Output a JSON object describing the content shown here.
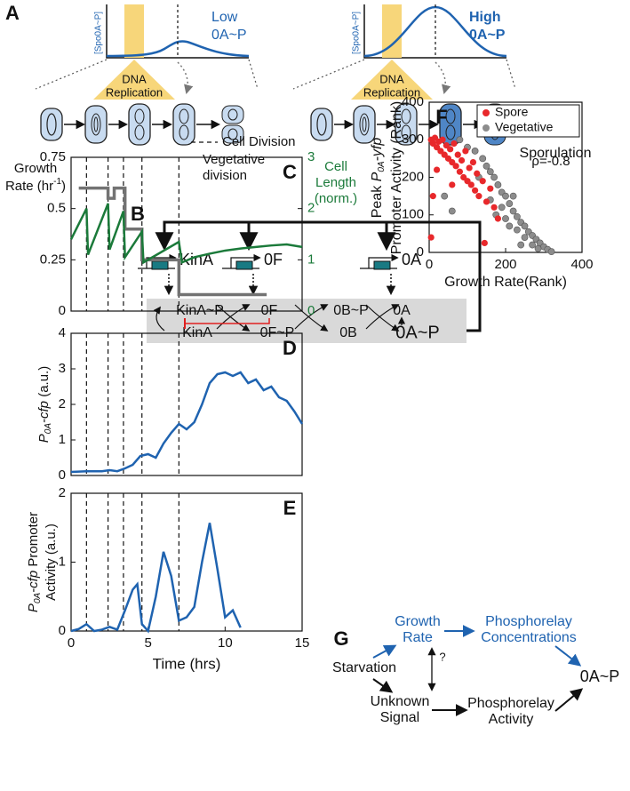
{
  "panels": {
    "A": {
      "label": "A",
      "y_axis": "[Spo0A~P]",
      "low": [
        "Low",
        "0A~P"
      ],
      "high": [
        "High",
        "0A~P"
      ],
      "replication": [
        "DNA",
        "Replication"
      ],
      "vegetative": [
        "Vegetative",
        "division"
      ],
      "sporulation": "Sporulation"
    },
    "B": {
      "label": "B",
      "genes": [
        "KinA",
        "0F",
        "0A"
      ],
      "nodes": [
        "KinA~P",
        "0F",
        "0B~P",
        "0A",
        "KinA",
        "0F~P",
        "0B",
        "0A~P"
      ]
    },
    "G": {
      "label": "G",
      "growth_rate": [
        "Growth",
        "Rate"
      ],
      "concentrations": [
        "Phosphorelay",
        "Concentrations"
      ],
      "starvation": "Starvation",
      "question": "?",
      "unknown": [
        "Unknown",
        "Signal"
      ],
      "activity": [
        "Phosphorelay",
        "Activity"
      ],
      "output": "0A~P"
    }
  },
  "chart_data": [
    {
      "type": "line",
      "panel": "C",
      "xlim": [
        0,
        15
      ],
      "ylim": [
        0,
        0.75
      ],
      "yticks": [
        0,
        0.25,
        0.5,
        0.75
      ],
      "y2lim": [
        0,
        3
      ],
      "y2ticks": [
        0,
        1,
        2,
        3
      ],
      "y2color": "#1b7a3a",
      "y_label": [
        [
          "Growth"
        ],
        [
          "Rate (hr",
          {
            "text": "-1",
            "style": "sup"
          },
          ")"
        ]
      ],
      "y2_label": [
        [
          "Cell"
        ],
        [
          "Length"
        ],
        [
          "(norm.)"
        ]
      ],
      "divisions": {
        "label": "Cell Division",
        "x": [
          1,
          2.4,
          3.4,
          4.6,
          7
        ]
      },
      "series": [
        {
          "color": "#737373",
          "x": [
            0.5,
            2.4,
            2.4,
            2.8,
            2.8,
            3.5,
            3.5,
            4.6,
            4.6,
            7,
            7,
            12.7
          ],
          "values": [
            0.6,
            0.6,
            0.55,
            0.55,
            0.6,
            0.6,
            0.4,
            0.4,
            0.25,
            0.25,
            0.08,
            0.08
          ]
        },
        {
          "color": "#1b7a3a",
          "axis": "y2",
          "x": [
            0,
            1,
            1.1,
            2.4,
            2.5,
            3.4,
            3.5,
            4.6,
            4.7,
            7,
            7.2,
            8,
            9,
            10,
            11,
            12,
            13,
            14,
            15
          ],
          "values": [
            1.4,
            2.0,
            1.1,
            2.1,
            1.2,
            1.95,
            1.05,
            1.55,
            0.95,
            1.35,
            0.95,
            1.05,
            1.12,
            1.18,
            1.22,
            1.25,
            1.28,
            1.3,
            1.25
          ]
        }
      ]
    },
    {
      "type": "line",
      "panel": "D",
      "xlim": [
        0,
        15
      ],
      "ylim": [
        0,
        4
      ],
      "yticks": [
        0,
        1,
        2,
        3,
        4
      ],
      "y_label": [
        [
          {
            "text": "P",
            "style": "italic"
          },
          {
            "text": "0A",
            "style": "sub"
          },
          {
            "text": "-cfp",
            "style": "italic"
          },
          " (a.u.)"
        ]
      ],
      "divisions": {
        "x": [
          1,
          2.4,
          3.4,
          4.6,
          7
        ]
      },
      "series": [
        {
          "color": "#1f63b0",
          "x": [
            0,
            1,
            2,
            2.5,
            3,
            3.5,
            4,
            4.5,
            5,
            5.5,
            6,
            6.5,
            7,
            7.5,
            8,
            8.5,
            9,
            9.5,
            10,
            10.5,
            11,
            11.5,
            12,
            12.5,
            13,
            13.5,
            14,
            14.5,
            15
          ],
          "values": [
            0.1,
            0.12,
            0.12,
            0.15,
            0.12,
            0.2,
            0.3,
            0.55,
            0.6,
            0.5,
            0.9,
            1.2,
            1.45,
            1.3,
            1.5,
            2.0,
            2.6,
            2.85,
            2.9,
            2.8,
            2.9,
            2.6,
            2.7,
            2.4,
            2.5,
            2.2,
            2.1,
            1.8,
            1.45
          ]
        }
      ]
    },
    {
      "type": "line",
      "panel": "E",
      "xlim": [
        0,
        15
      ],
      "ylim": [
        0,
        2
      ],
      "yticks": [
        0,
        1,
        2
      ],
      "xticks": [
        0,
        5,
        10,
        15
      ],
      "x_label": "Time (hrs)",
      "y_label": [
        [
          {
            "text": "P",
            "style": "italic"
          },
          {
            "text": "0A",
            "style": "sub"
          },
          {
            "text": "-cfp",
            "style": "italic"
          },
          " Promoter"
        ],
        [
          "Activity (a.u.)"
        ]
      ],
      "divisions": {
        "x": [
          1,
          2.4,
          3.4,
          4.6,
          7
        ]
      },
      "series": [
        {
          "color": "#1f63b0",
          "x": [
            0,
            0.5,
            1,
            1.5,
            2,
            2.5,
            3,
            3.5,
            4,
            4.3,
            4.6,
            5,
            5.5,
            6,
            6.5,
            7,
            7.5,
            8,
            8.5,
            9,
            9.5,
            10,
            10.5,
            11
          ],
          "values": [
            0,
            0.03,
            0.1,
            0,
            0.02,
            0.06,
            0.02,
            0.3,
            0.6,
            0.68,
            0.1,
            0,
            0.5,
            1.15,
            0.8,
            0.15,
            0.2,
            0.35,
            1.0,
            1.57,
            0.9,
            0.2,
            0.3,
            0.05
          ]
        }
      ]
    },
    {
      "type": "scatter",
      "panel": "F",
      "xlim": [
        0,
        400
      ],
      "ylim": [
        0,
        400
      ],
      "xticks": [
        0,
        200,
        400
      ],
      "yticks": [
        0,
        100,
        200,
        300,
        400
      ],
      "x_label": "Growth Rate(Rank)",
      "y_label": [
        [
          "Peak ",
          {
            "text": "P",
            "style": "italic"
          },
          {
            "text": "0A",
            "style": "sub"
          },
          {
            "text": "-yfp",
            "style": "italic"
          }
        ],
        [
          "Promoter Activity (Rank)"
        ]
      ],
      "annotation": "ρ=-0.8",
      "legend": "upper right",
      "series": [
        {
          "name": "Spore",
          "color": "#e8282b",
          "x": [
            5,
            10,
            15,
            20,
            25,
            30,
            35,
            40,
            45,
            50,
            55,
            60,
            65,
            70,
            75,
            80,
            85,
            90,
            95,
            100,
            105,
            110,
            115,
            120,
            125,
            130,
            140,
            150,
            160,
            170,
            20,
            10,
            5,
            60,
            180,
            145
          ],
          "values": [
            300,
            290,
            305,
            280,
            295,
            270,
            300,
            260,
            285,
            250,
            275,
            240,
            290,
            230,
            260,
            215,
            245,
            200,
            270,
            190,
            225,
            180,
            240,
            165,
            210,
            150,
            190,
            135,
            170,
            120,
            220,
            150,
            40,
            180,
            90,
            25
          ]
        },
        {
          "name": "Vegetative",
          "color": "#8c8c8c",
          "x": [
            40,
            60,
            80,
            100,
            120,
            140,
            150,
            160,
            170,
            180,
            190,
            200,
            210,
            220,
            230,
            240,
            250,
            260,
            270,
            280,
            290,
            300,
            310,
            320,
            200,
            190,
            230,
            250,
            270,
            175,
            210,
            240,
            160,
            130,
            220,
            285
          ],
          "values": [
            150,
            110,
            300,
            280,
            270,
            250,
            230,
            215,
            200,
            180,
            160,
            150,
            130,
            110,
            95,
            80,
            70,
            55,
            45,
            35,
            25,
            15,
            8,
            2,
            90,
            120,
            60,
            40,
            20,
            100,
            70,
            20,
            140,
            200,
            150,
            10
          ]
        }
      ]
    }
  ]
}
